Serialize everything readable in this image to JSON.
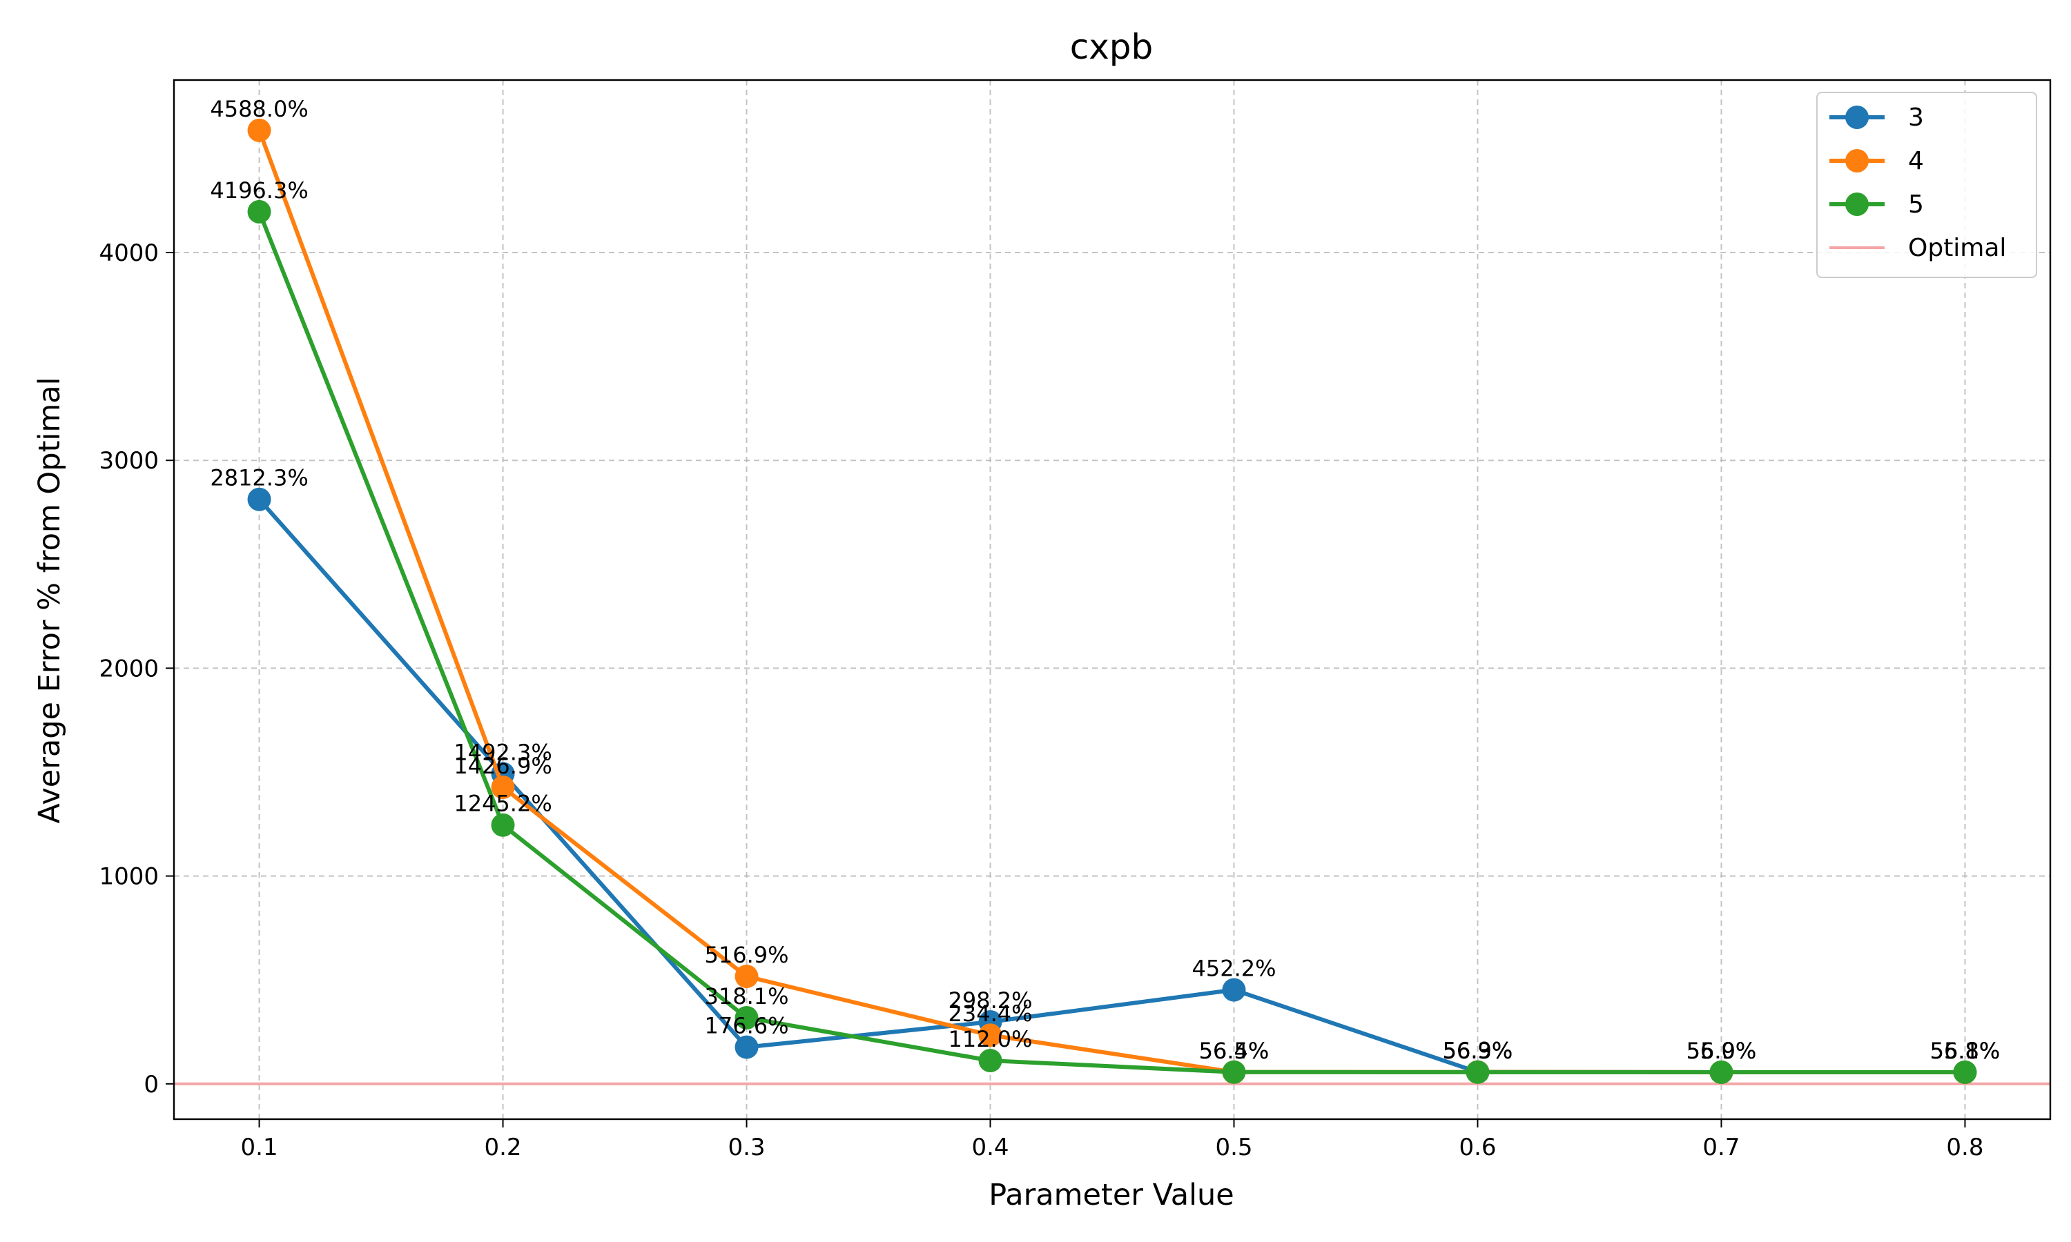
{
  "chart_data": {
    "type": "line",
    "title": "cxpb",
    "xlabel": "Parameter Value",
    "ylabel": "Average Error % from Optimal",
    "x": [
      0.1,
      0.2,
      0.3,
      0.4,
      0.5,
      0.6,
      0.7,
      0.8
    ],
    "x_tick_labels": [
      "0.1",
      "0.2",
      "0.3",
      "0.4",
      "0.5",
      "0.6",
      "0.7",
      "0.8"
    ],
    "y_ticks": [
      0,
      1000,
      2000,
      3000,
      4000
    ],
    "y_tick_labels": [
      "0",
      "1000",
      "2000",
      "3000",
      "4000"
    ],
    "xlim": [
      0.065,
      0.835
    ],
    "ylim": [
      -170,
      4830
    ],
    "grid": true,
    "legend_position": "top-right",
    "series": [
      {
        "name": "3",
        "color": "#1f77b4",
        "values": [
          2812.3,
          1492.3,
          176.6,
          298.2,
          452.2,
          56.9,
          55.9,
          55.8
        ],
        "labels": [
          "2812.3%",
          "1492.3%",
          "176.6%",
          "298.2%",
          "452.2%",
          "56.9%",
          "55.9%",
          "55.8%"
        ]
      },
      {
        "name": "4",
        "color": "#ff7f0e",
        "values": [
          4588.0,
          1426.9,
          516.9,
          234.4,
          56.4,
          56.9,
          55.9,
          55.8
        ],
        "labels": [
          "4588.0%",
          "1426.9%",
          "516.9%",
          "234.4%",
          "56.4%",
          "56.9%",
          "55.9%",
          "55.8%"
        ]
      },
      {
        "name": "5",
        "color": "#2ca02c",
        "values": [
          4196.3,
          1245.2,
          318.1,
          112.0,
          56.5,
          56.3,
          56.0,
          56.1
        ],
        "labels": [
          "4196.3%",
          "1245.2%",
          "318.1%",
          "112.0%",
          "56.5%",
          "56.3%",
          "56.0%",
          "56.1%"
        ]
      }
    ],
    "reference_line": {
      "name": "Optimal",
      "value": 0,
      "color": "#f4a6a6"
    }
  }
}
